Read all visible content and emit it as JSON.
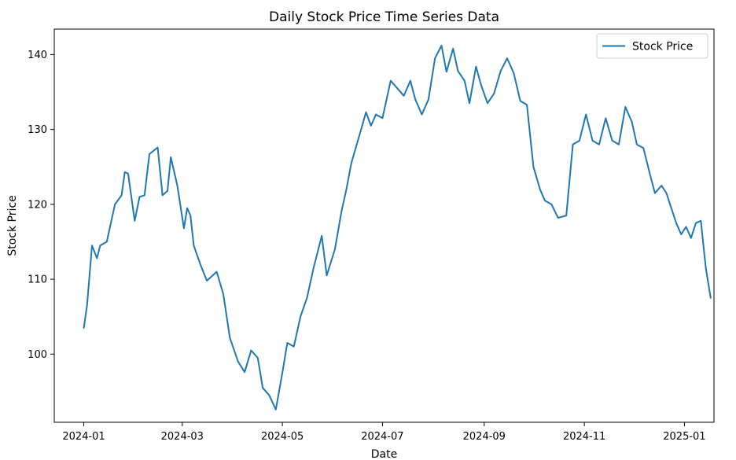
{
  "chart_data": {
    "type": "line",
    "title": "Daily Stock Price Time Series Data",
    "xlabel": "Date",
    "ylabel": "Stock Price",
    "xlim": [
      "2023-12-14",
      "2025-01-19"
    ],
    "ylim": [
      90.9,
      143.4
    ],
    "x_ticks": [
      "2024-01",
      "2024-03",
      "2024-05",
      "2024-07",
      "2024-09",
      "2024-11",
      "2025-01"
    ],
    "y_ticks": [
      100,
      110,
      120,
      130,
      140
    ],
    "grid": false,
    "legend": {
      "position": "top-right",
      "entries": [
        "Stock Price"
      ]
    },
    "series": [
      {
        "name": "Stock Price",
        "color": "#1f77b4",
        "points": [
          [
            "2024-01-01",
            103.5
          ],
          [
            "2024-01-03",
            106.5
          ],
          [
            "2024-01-06",
            114.5
          ],
          [
            "2024-01-09",
            112.8
          ],
          [
            "2024-01-11",
            114.5
          ],
          [
            "2024-01-15",
            115
          ],
          [
            "2024-01-20",
            120
          ],
          [
            "2024-01-24",
            121.2
          ],
          [
            "2024-01-26",
            124.3
          ],
          [
            "2024-01-28",
            124.1
          ],
          [
            "2024-02-01",
            117.8
          ],
          [
            "2024-02-04",
            121
          ],
          [
            "2024-02-07",
            121.2
          ],
          [
            "2024-02-10",
            126.7
          ],
          [
            "2024-02-15",
            127.6
          ],
          [
            "2024-02-18",
            121.2
          ],
          [
            "2024-02-21",
            121.8
          ],
          [
            "2024-02-23",
            126.3
          ],
          [
            "2024-02-27",
            122.5
          ],
          [
            "2024-03-02",
            116.8
          ],
          [
            "2024-03-04",
            119.5
          ],
          [
            "2024-03-06",
            118.5
          ],
          [
            "2024-03-08",
            114.5
          ],
          [
            "2024-03-12",
            112
          ],
          [
            "2024-03-16",
            109.8
          ],
          [
            "2024-03-22",
            111
          ],
          [
            "2024-03-26",
            108
          ],
          [
            "2024-03-30",
            102.2
          ],
          [
            "2024-04-04",
            99
          ],
          [
            "2024-04-08",
            97.6
          ],
          [
            "2024-04-12",
            100.5
          ],
          [
            "2024-04-16",
            99.5
          ],
          [
            "2024-04-19",
            95.5
          ],
          [
            "2024-04-23",
            94.5
          ],
          [
            "2024-04-27",
            92.6
          ],
          [
            "2024-05-01",
            97.5
          ],
          [
            "2024-05-04",
            101.5
          ],
          [
            "2024-05-08",
            101
          ],
          [
            "2024-05-12",
            105
          ],
          [
            "2024-05-16",
            107.5
          ],
          [
            "2024-05-20",
            111.5
          ],
          [
            "2024-05-25",
            115.8
          ],
          [
            "2024-05-28",
            110.5
          ],
          [
            "2024-06-02",
            114
          ],
          [
            "2024-06-06",
            119
          ],
          [
            "2024-06-09",
            122
          ],
          [
            "2024-06-12",
            125.5
          ],
          [
            "2024-06-16",
            128.5
          ],
          [
            "2024-06-21",
            132.3
          ],
          [
            "2024-06-24",
            130.5
          ],
          [
            "2024-06-27",
            132
          ],
          [
            "2024-07-01",
            131.5
          ],
          [
            "2024-07-06",
            136.5
          ],
          [
            "2024-07-10",
            135.5
          ],
          [
            "2024-07-14",
            134.5
          ],
          [
            "2024-07-18",
            136.5
          ],
          [
            "2024-07-21",
            134
          ],
          [
            "2024-07-25",
            132
          ],
          [
            "2024-07-29",
            134
          ],
          [
            "2024-08-02",
            139.5
          ],
          [
            "2024-08-06",
            141.2
          ],
          [
            "2024-08-09",
            137.7
          ],
          [
            "2024-08-13",
            140.8
          ],
          [
            "2024-08-16",
            137.8
          ],
          [
            "2024-08-20",
            136.5
          ],
          [
            "2024-08-23",
            133.5
          ],
          [
            "2024-08-27",
            138.4
          ],
          [
            "2024-08-30",
            136
          ],
          [
            "2024-09-03",
            133.5
          ],
          [
            "2024-09-07",
            134.8
          ],
          [
            "2024-09-11",
            137.8
          ],
          [
            "2024-09-15",
            139.5
          ],
          [
            "2024-09-19",
            137.5
          ],
          [
            "2024-09-23",
            133.8
          ],
          [
            "2024-09-27",
            133.3
          ],
          [
            "2024-10-01",
            125
          ],
          [
            "2024-10-05",
            122
          ],
          [
            "2024-10-08",
            120.5
          ],
          [
            "2024-10-12",
            120
          ],
          [
            "2024-10-16",
            118.2
          ],
          [
            "2024-10-21",
            118.5
          ],
          [
            "2024-10-25",
            128
          ],
          [
            "2024-10-29",
            128.5
          ],
          [
            "2024-11-02",
            132
          ],
          [
            "2024-11-06",
            128.5
          ],
          [
            "2024-11-10",
            128
          ],
          [
            "2024-11-14",
            131.5
          ],
          [
            "2024-11-18",
            128.5
          ],
          [
            "2024-11-22",
            128
          ],
          [
            "2024-11-26",
            133
          ],
          [
            "2024-11-30",
            131
          ],
          [
            "2024-12-03",
            128
          ],
          [
            "2024-12-07",
            127.5
          ],
          [
            "2024-12-11",
            124
          ],
          [
            "2024-12-14",
            121.5
          ],
          [
            "2024-12-18",
            122.5
          ],
          [
            "2024-12-21",
            121.5
          ],
          [
            "2024-12-24",
            119.5
          ],
          [
            "2024-12-27",
            117.5
          ],
          [
            "2024-12-30",
            116
          ],
          [
            "2025-01-02",
            117
          ],
          [
            "2025-01-05",
            115.5
          ],
          [
            "2025-01-08",
            117.5
          ],
          [
            "2025-01-11",
            117.8
          ],
          [
            "2025-01-14",
            111.5
          ],
          [
            "2025-01-17",
            107.5
          ]
        ]
      }
    ]
  }
}
